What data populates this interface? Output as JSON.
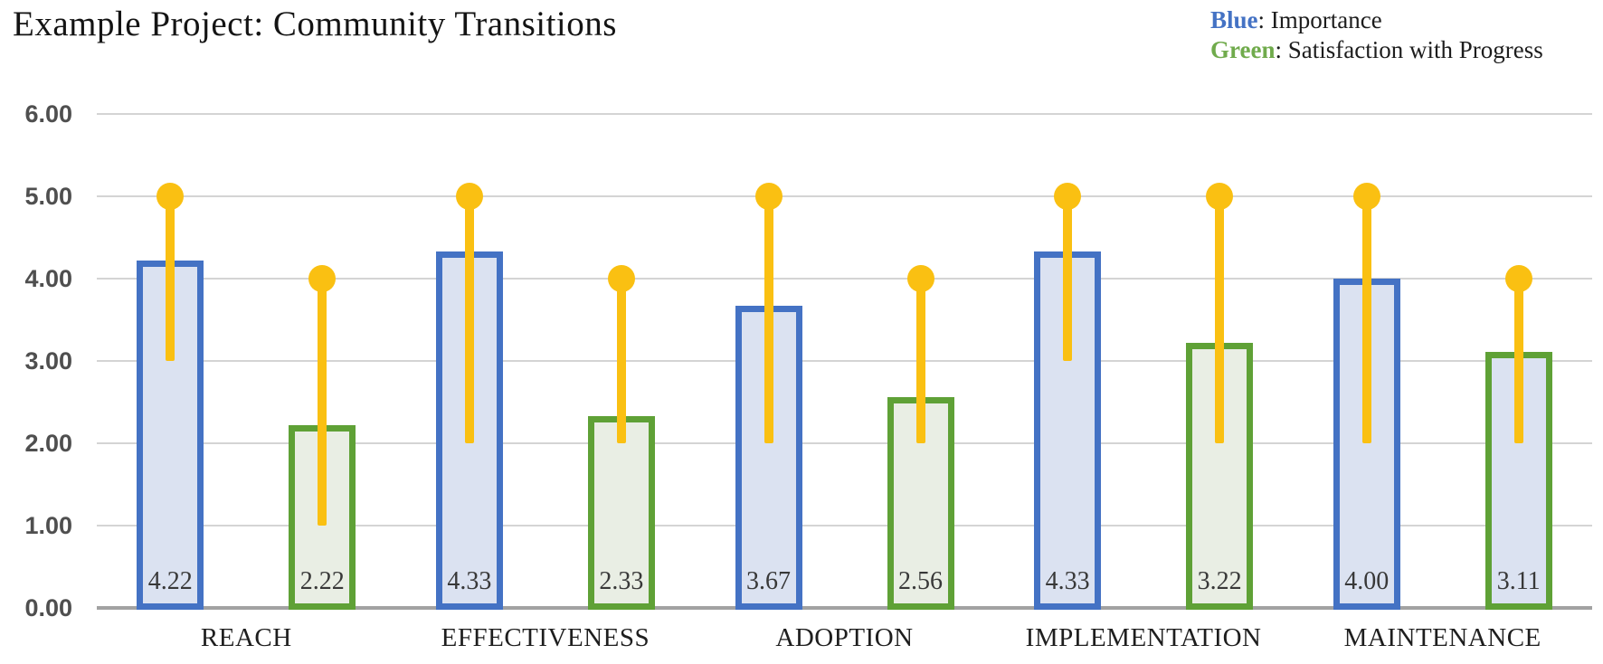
{
  "title": "Example Project: Community Transitions",
  "legend": {
    "items": [
      {
        "word": "Blue",
        "separator": ": ",
        "text": "Importance",
        "color": "#4472c4"
      },
      {
        "word": "Green",
        "separator": ": ",
        "text": "Satisfaction with Progress",
        "color": "#70ab4c"
      }
    ]
  },
  "chart_data": {
    "type": "bar",
    "title": "Example Project: Community Transitions",
    "categories": [
      "REACH",
      "EFFECTIVENESS",
      "ADOPTION",
      "IMPLEMENTATION",
      "MAINTENANCE"
    ],
    "series": [
      {
        "name": "Importance",
        "key": "importance",
        "border_color": "#4472c4",
        "fills": [
          "#dbe2f1",
          "#dbe2f1",
          "#dbe2f1",
          "#dbe2f1",
          "#dbe2f1"
        ],
        "values": [
          4.22,
          4.33,
          3.67,
          4.33,
          4.0
        ],
        "value_labels": [
          "4.22",
          "4.33",
          "3.67",
          "4.33",
          "4.00"
        ],
        "error_ranges": [
          [
            3,
            5
          ],
          [
            2,
            5
          ],
          [
            2,
            5
          ],
          [
            3,
            5
          ],
          [
            2,
            5
          ]
        ]
      },
      {
        "name": "Satisfaction with Progress",
        "key": "satisfaction",
        "border_color": "#5fa136",
        "fills": [
          "#e9eee4",
          "#e9eee4",
          "#e9eee4",
          "#e9eee4",
          "#dbe2f1"
        ],
        "values": [
          2.22,
          2.33,
          2.56,
          3.22,
          3.11
        ],
        "value_labels": [
          "2.22",
          "2.33",
          "2.56",
          "3.22",
          "3.11"
        ],
        "error_ranges": [
          [
            1,
            4
          ],
          [
            2,
            4
          ],
          [
            2,
            4
          ],
          [
            2,
            5
          ],
          [
            2,
            4
          ]
        ]
      }
    ],
    "error_bar_color": "#fac012",
    "ylim": [
      0,
      6
    ],
    "yticks": [
      {
        "label": "6.00",
        "value": 6
      },
      {
        "label": "5.00",
        "value": 5
      },
      {
        "label": "4.00",
        "value": 4
      },
      {
        "label": "3.00",
        "value": 3
      },
      {
        "label": "2.00",
        "value": 2
      },
      {
        "label": "1.00",
        "value": 1
      },
      {
        "label": "0.00",
        "value": 0
      }
    ],
    "grid": true,
    "legend_position": "top-right",
    "gridline_color": "#d4d4d4",
    "axis_color": "#a2a2a2"
  }
}
